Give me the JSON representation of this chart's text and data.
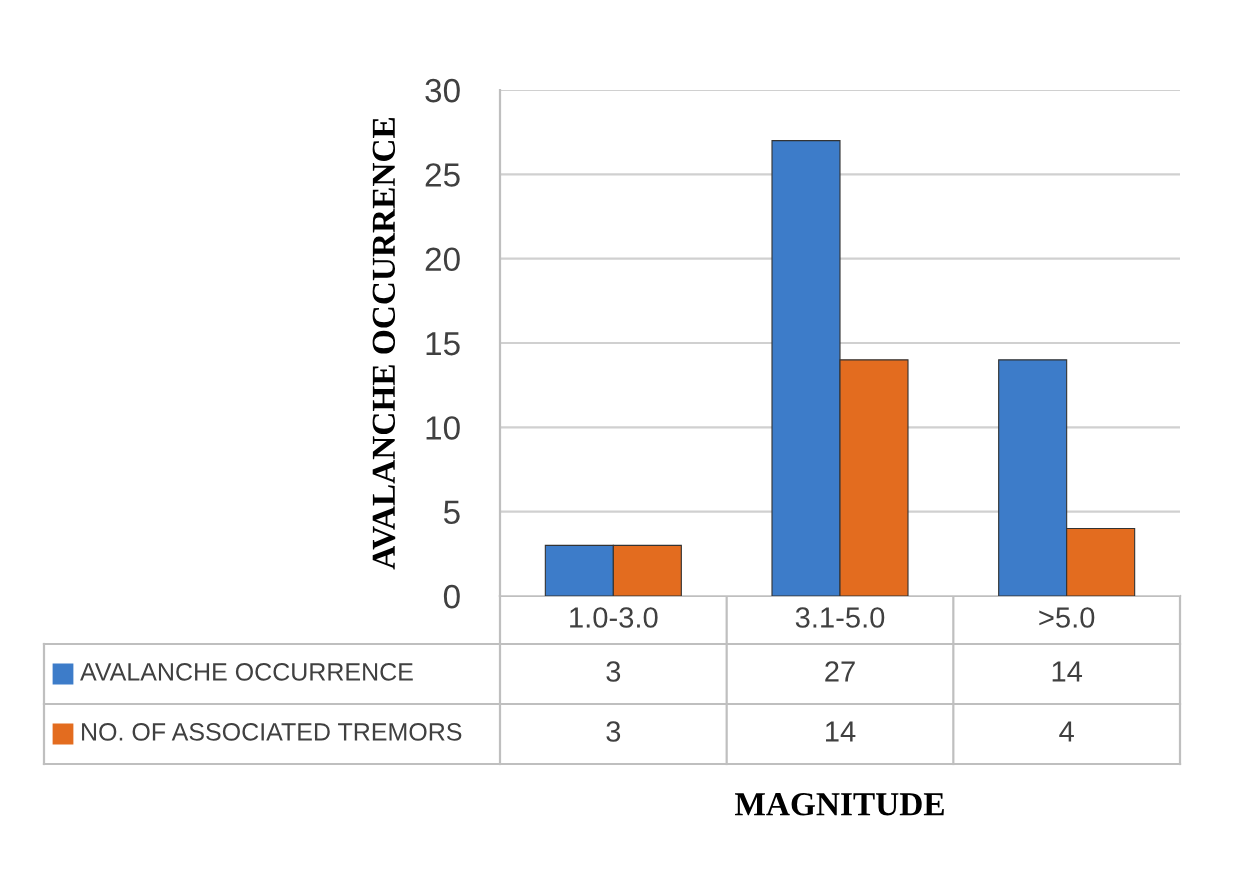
{
  "chart_data": {
    "type": "bar",
    "ylabel": "AVALANCHE OCCURRENCE",
    "xlabel": "MAGNITUDE",
    "categories": [
      "1.0-3.0",
      "3.1-5.0",
      ">5.0"
    ],
    "series": [
      {
        "name": "AVALANCHE OCCURRENCE",
        "color": "#3d7cc9",
        "values": [
          3,
          27,
          14
        ]
      },
      {
        "name": "NO. OF ASSOCIATED TREMORS",
        "color": "#e36c1f",
        "values": [
          3,
          14,
          4
        ]
      }
    ],
    "ylim": [
      0,
      30
    ],
    "yticks": [
      0,
      5,
      10,
      15,
      20,
      25,
      30
    ],
    "grid": "y",
    "data_labels": true,
    "legend": "bottom"
  }
}
